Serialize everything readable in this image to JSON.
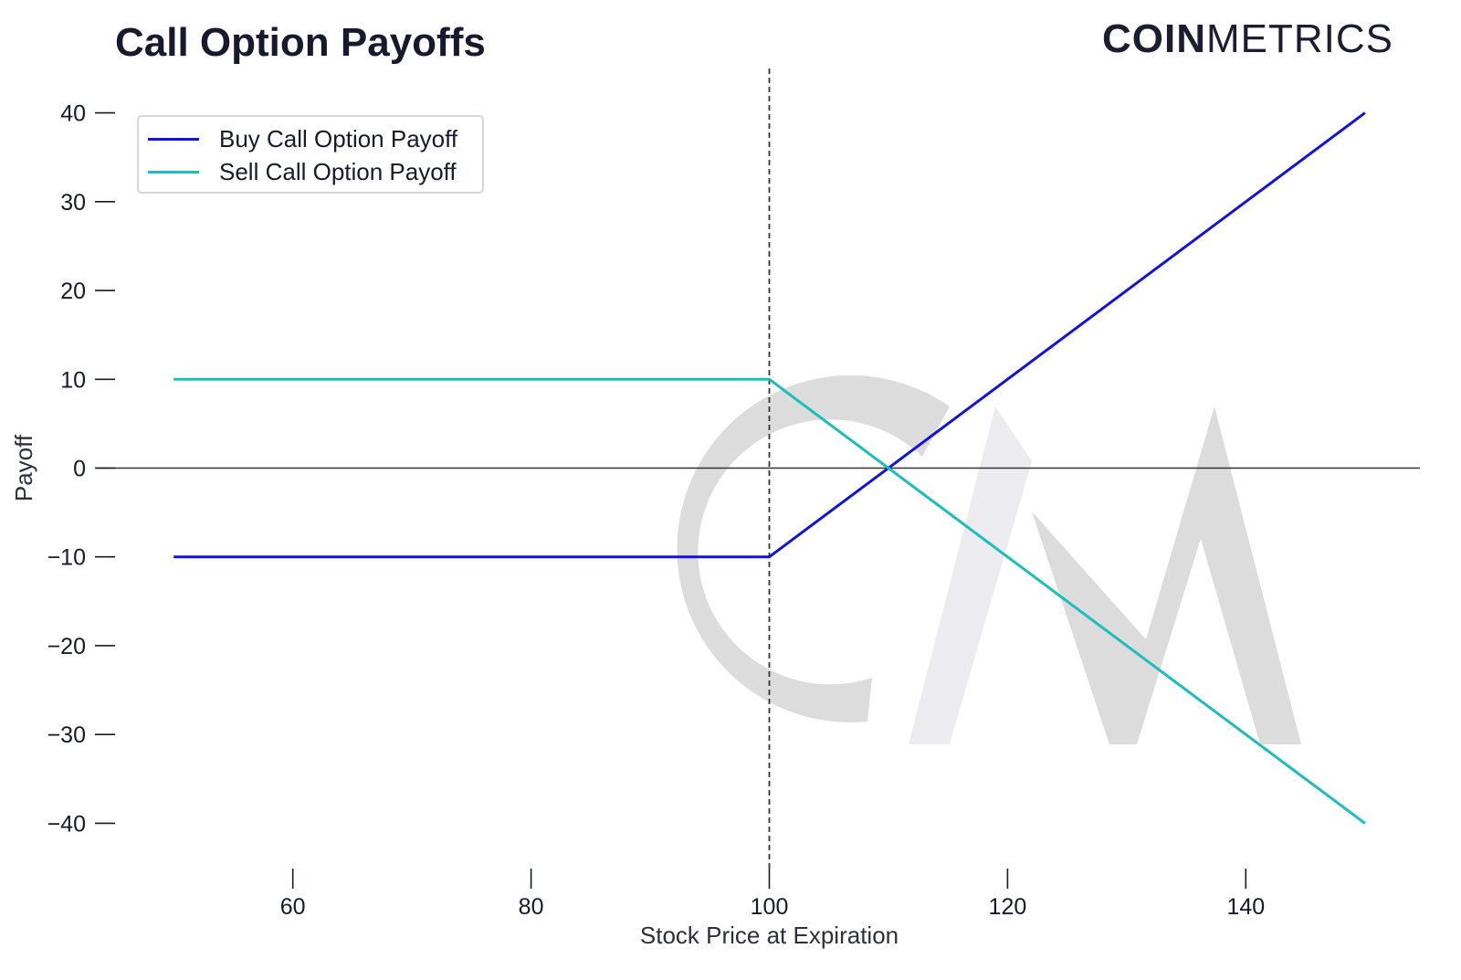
{
  "brand": {
    "part1": "COIN",
    "part2": "METRICS"
  },
  "chart_data": {
    "type": "line",
    "title": "Call Option Payoffs",
    "xlabel": "Stock Price at Expiration",
    "ylabel": "Payoff",
    "xlim": [
      45,
      155
    ],
    "ylim": [
      -45,
      45
    ],
    "xticks": [
      60,
      80,
      100,
      120,
      140
    ],
    "yticks": [
      40,
      30,
      20,
      10,
      0,
      -10,
      -20,
      -30,
      -40
    ],
    "ytick_labels": [
      "40",
      "30",
      "20",
      "10",
      "0",
      "−10",
      "−20",
      "−30",
      "−40"
    ],
    "grid": false,
    "legend": "top-left",
    "strike_line": {
      "x": 100,
      "style": "dashed",
      "color": "#333333"
    },
    "zero_line": {
      "y": 0,
      "color": "#333333"
    },
    "series": [
      {
        "name": "Buy Call Option Payoff",
        "color": "#1212e0",
        "x": [
          50,
          100,
          150
        ],
        "y": [
          -10,
          -10,
          40
        ]
      },
      {
        "name": "Sell Call Option Payoff",
        "color": "#1ebdbd",
        "x": [
          50,
          100,
          150
        ],
        "y": [
          10,
          10,
          -40
        ]
      }
    ]
  },
  "watermark": {
    "text": "CM",
    "color": "#d9d9d9"
  }
}
